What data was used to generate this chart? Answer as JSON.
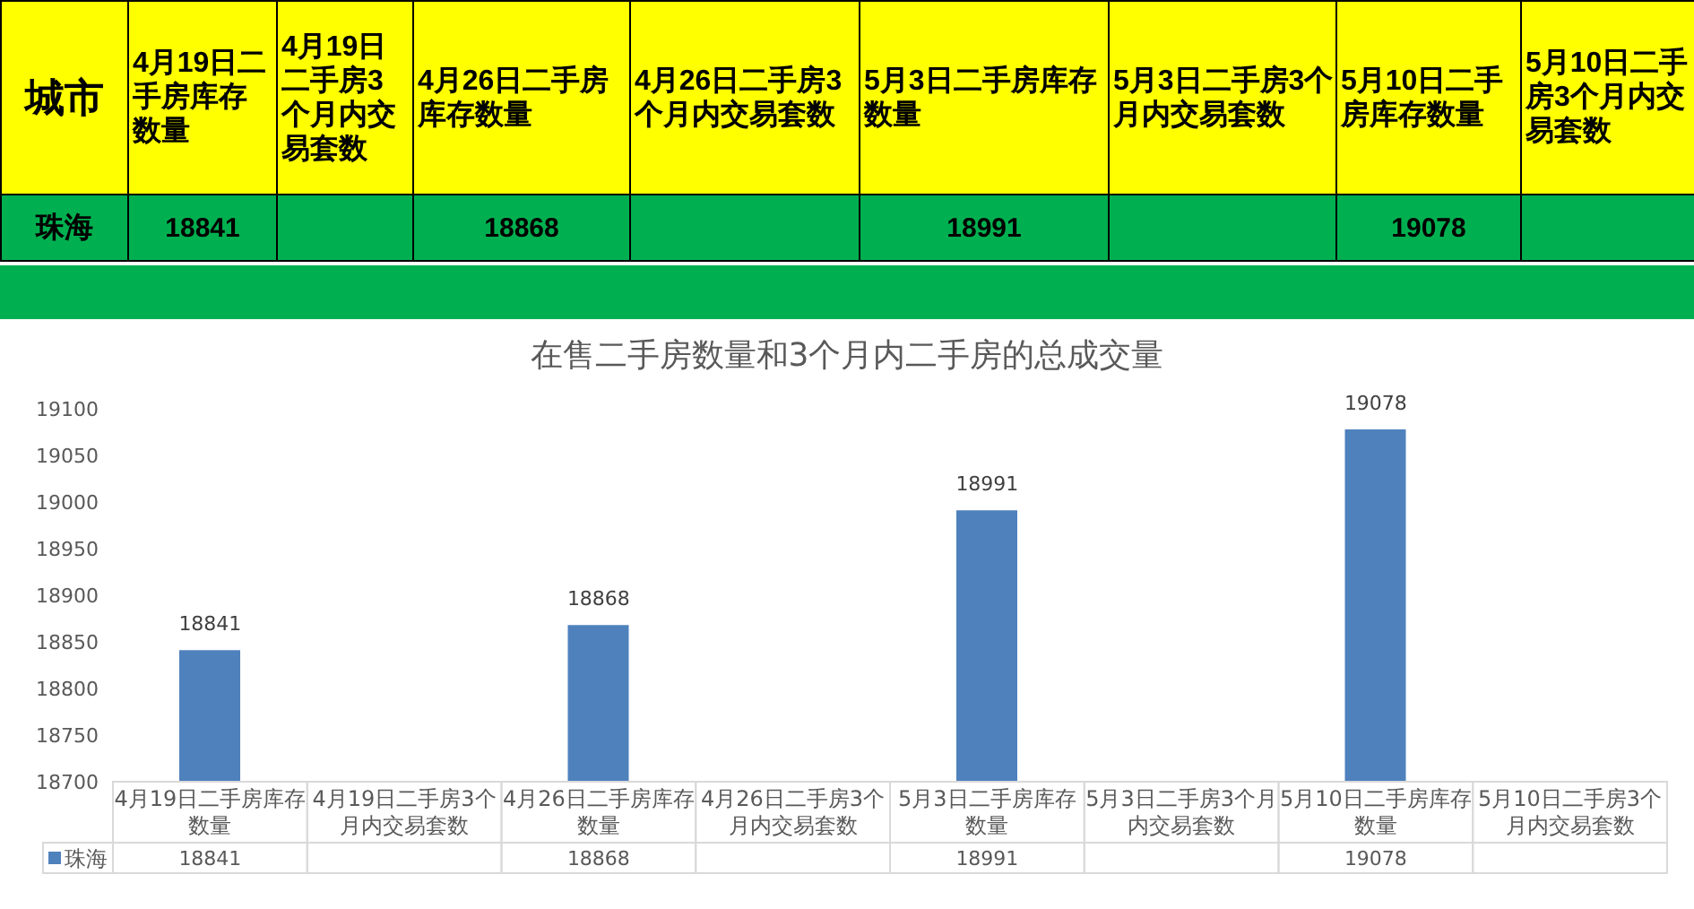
{
  "chart_data": {
    "type": "bar",
    "title": "在售二手房数量和3个月内二手房的总成交量",
    "legend_title": "城市",
    "categories": [
      "4月19日二手房库存数量",
      "4月19日二手房3个月内交易套数",
      "4月26日二手房库存数量",
      "4月26日二手房3个月内交易套数",
      "5月3日二手房库存数量",
      "5月3日二手房3个月内交易套数",
      "5月10日二手房库存数量",
      "5月10日二手房3个月内交易套数"
    ],
    "series": [
      {
        "name": "珠海",
        "color": "#4f81bd",
        "values": [
          18841,
          null,
          18868,
          null,
          18991,
          null,
          19078,
          null
        ]
      }
    ],
    "ylim": [
      18700,
      19100
    ],
    "yticks": [
      18700,
      18750,
      18800,
      18850,
      18900,
      18950,
      19000,
      19050,
      19100
    ],
    "grid": false,
    "legend": "bottom",
    "data_labels": true,
    "annotations": [
      {
        "text": "18841",
        "x": "4月19日二手房库存数量",
        "y": 18841
      },
      {
        "text": "18868",
        "x": "4月26日二手房库存数量",
        "y": 18868
      },
      {
        "text": "18991",
        "x": "5月3日二手房库存数量",
        "y": 18991
      },
      {
        "text": "19078",
        "x": "5月10日二手房库存数量",
        "y": 19078
      },
      "18841",
      "18868",
      "18991",
      "19078"
    ]
  }
}
